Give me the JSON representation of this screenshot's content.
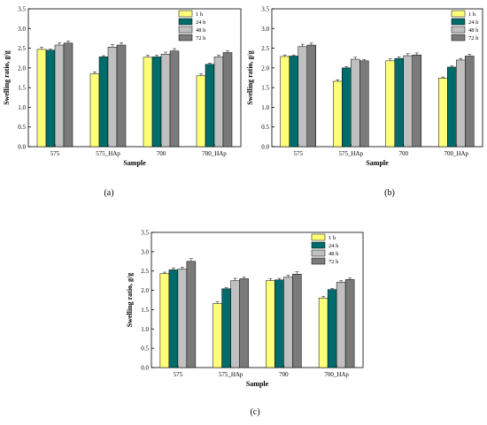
{
  "colors": {
    "1 h": "#ffff7a",
    "24 h": "#006b6b",
    "48 h": "#c0c0c0",
    "72 h": "#7a7a7a",
    "axis": "#000000"
  },
  "chart_data": [
    {
      "label": "(a)",
      "type": "bar",
      "xlabel": "Sample",
      "ylabel": "Swelling ratio, g/g",
      "ylim": [
        0.0,
        3.5
      ],
      "yticks": [
        "0.0",
        "0.5",
        "1.0",
        "1.5",
        "2.0",
        "2.5",
        "3.0",
        "3.5"
      ],
      "categories": [
        "575",
        "575_HAp",
        "700",
        "700_HAp"
      ],
      "legend_position": "top-right",
      "series": [
        {
          "name": "1 h",
          "values": [
            2.47,
            1.85,
            2.27,
            1.8
          ],
          "errors": [
            0.05,
            0.05,
            0.05,
            0.05
          ]
        },
        {
          "name": "24 h",
          "values": [
            2.45,
            2.28,
            2.28,
            2.09
          ],
          "errors": [
            0.03,
            0.03,
            0.04,
            0.03
          ]
        },
        {
          "name": "48 h",
          "values": [
            2.58,
            2.53,
            2.35,
            2.28
          ],
          "errors": [
            0.06,
            0.06,
            0.05,
            0.04
          ]
        },
        {
          "name": "72 h",
          "values": [
            2.63,
            2.58,
            2.43,
            2.39
          ],
          "errors": [
            0.05,
            0.06,
            0.06,
            0.04
          ]
        }
      ]
    },
    {
      "label": "(b)",
      "type": "bar",
      "xlabel": "Sample",
      "ylabel": "Swelling ratio, g/g",
      "ylim": [
        0.0,
        3.5
      ],
      "yticks": [
        "0.0",
        "0.5",
        "1.0",
        "1.5",
        "2.0",
        "2.5",
        "3.0",
        "3.5"
      ],
      "categories": [
        "575",
        "575_HAp",
        "700",
        "700_HAp"
      ],
      "legend_position": "top-right",
      "series": [
        {
          "name": "1 h",
          "values": [
            2.29,
            1.66,
            2.18,
            1.74
          ],
          "errors": [
            0.04,
            0.04,
            0.05,
            0.03
          ]
        },
        {
          "name": "24 h",
          "values": [
            2.3,
            2.0,
            2.24,
            2.02
          ],
          "errors": [
            0.03,
            0.03,
            0.04,
            0.03
          ]
        },
        {
          "name": "48 h",
          "values": [
            2.54,
            2.22,
            2.31,
            2.2
          ],
          "errors": [
            0.06,
            0.05,
            0.05,
            0.04
          ]
        },
        {
          "name": "72 h",
          "values": [
            2.58,
            2.18,
            2.33,
            2.3
          ],
          "errors": [
            0.05,
            0.03,
            0.05,
            0.04
          ]
        }
      ]
    },
    {
      "label": "(c)",
      "type": "bar",
      "xlabel": "Sample",
      "ylabel": "Swelling ratio, g/g",
      "ylim": [
        0.0,
        3.5
      ],
      "yticks": [
        "0.0",
        "0.5",
        "1.0",
        "1.5",
        "2.0",
        "2.5",
        "3.0",
        "3.5"
      ],
      "categories": [
        "575",
        "575_HAp",
        "700",
        "700_HAp"
      ],
      "legend_position": "top-right",
      "series": [
        {
          "name": "1 h",
          "values": [
            2.43,
            1.66,
            2.25,
            1.8
          ],
          "errors": [
            0.04,
            0.04,
            0.05,
            0.04
          ]
        },
        {
          "name": "24 h",
          "values": [
            2.53,
            2.04,
            2.27,
            2.02
          ],
          "errors": [
            0.05,
            0.03,
            0.04,
            0.03
          ]
        },
        {
          "name": "48 h",
          "values": [
            2.55,
            2.25,
            2.34,
            2.21
          ],
          "errors": [
            0.05,
            0.06,
            0.05,
            0.04
          ]
        },
        {
          "name": "72 h",
          "values": [
            2.75,
            2.3,
            2.42,
            2.28
          ],
          "errors": [
            0.07,
            0.04,
            0.06,
            0.04
          ]
        }
      ]
    }
  ]
}
